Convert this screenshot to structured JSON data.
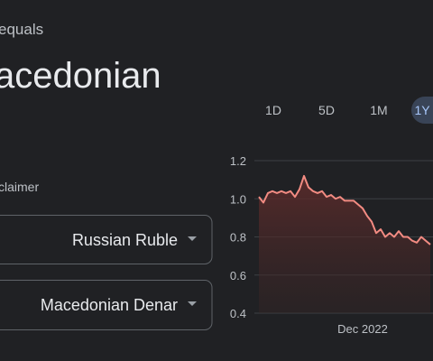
{
  "header": {
    "subtitle": "equals",
    "title": "acedonian"
  },
  "range_buttons": [
    "1D",
    "5D",
    "1M",
    "1Y"
  ],
  "disclaimer": "claimer",
  "converter": {
    "from": "Russian Ruble",
    "to": "Macedonian Denar"
  },
  "chart_data": {
    "type": "line",
    "categories": [
      null,
      null,
      null,
      null,
      null,
      null,
      null,
      null,
      null,
      null,
      null,
      null,
      null,
      null,
      null,
      null,
      null,
      null,
      null,
      null,
      null,
      null,
      null,
      "Dec 2022",
      null,
      null,
      null,
      null,
      null,
      null,
      null,
      null,
      null,
      null,
      null,
      null,
      null,
      null,
      null
    ],
    "series": [
      {
        "color": "#f28b82",
        "values": [
          1.01,
          0.98,
          1.03,
          1.04,
          1.03,
          1.04,
          1.03,
          1.04,
          1.01,
          1.05,
          1.12,
          1.06,
          1.04,
          1.03,
          1.04,
          1.01,
          1.02,
          1.0,
          1.01,
          0.99,
          0.99,
          0.99,
          0.97,
          0.95,
          0.91,
          0.88,
          0.82,
          0.84,
          0.8,
          0.82,
          0.8,
          0.83,
          0.8,
          0.8,
          0.78,
          0.77,
          0.8,
          0.78,
          0.76
        ]
      }
    ],
    "ylim": [
      0.4,
      1.2
    ],
    "yticks": [
      0.4,
      0.6,
      0.8,
      {
        "value": 1,
        "label": "1.0"
      },
      1.2
    ],
    "grid": true,
    "area": true
  }
}
